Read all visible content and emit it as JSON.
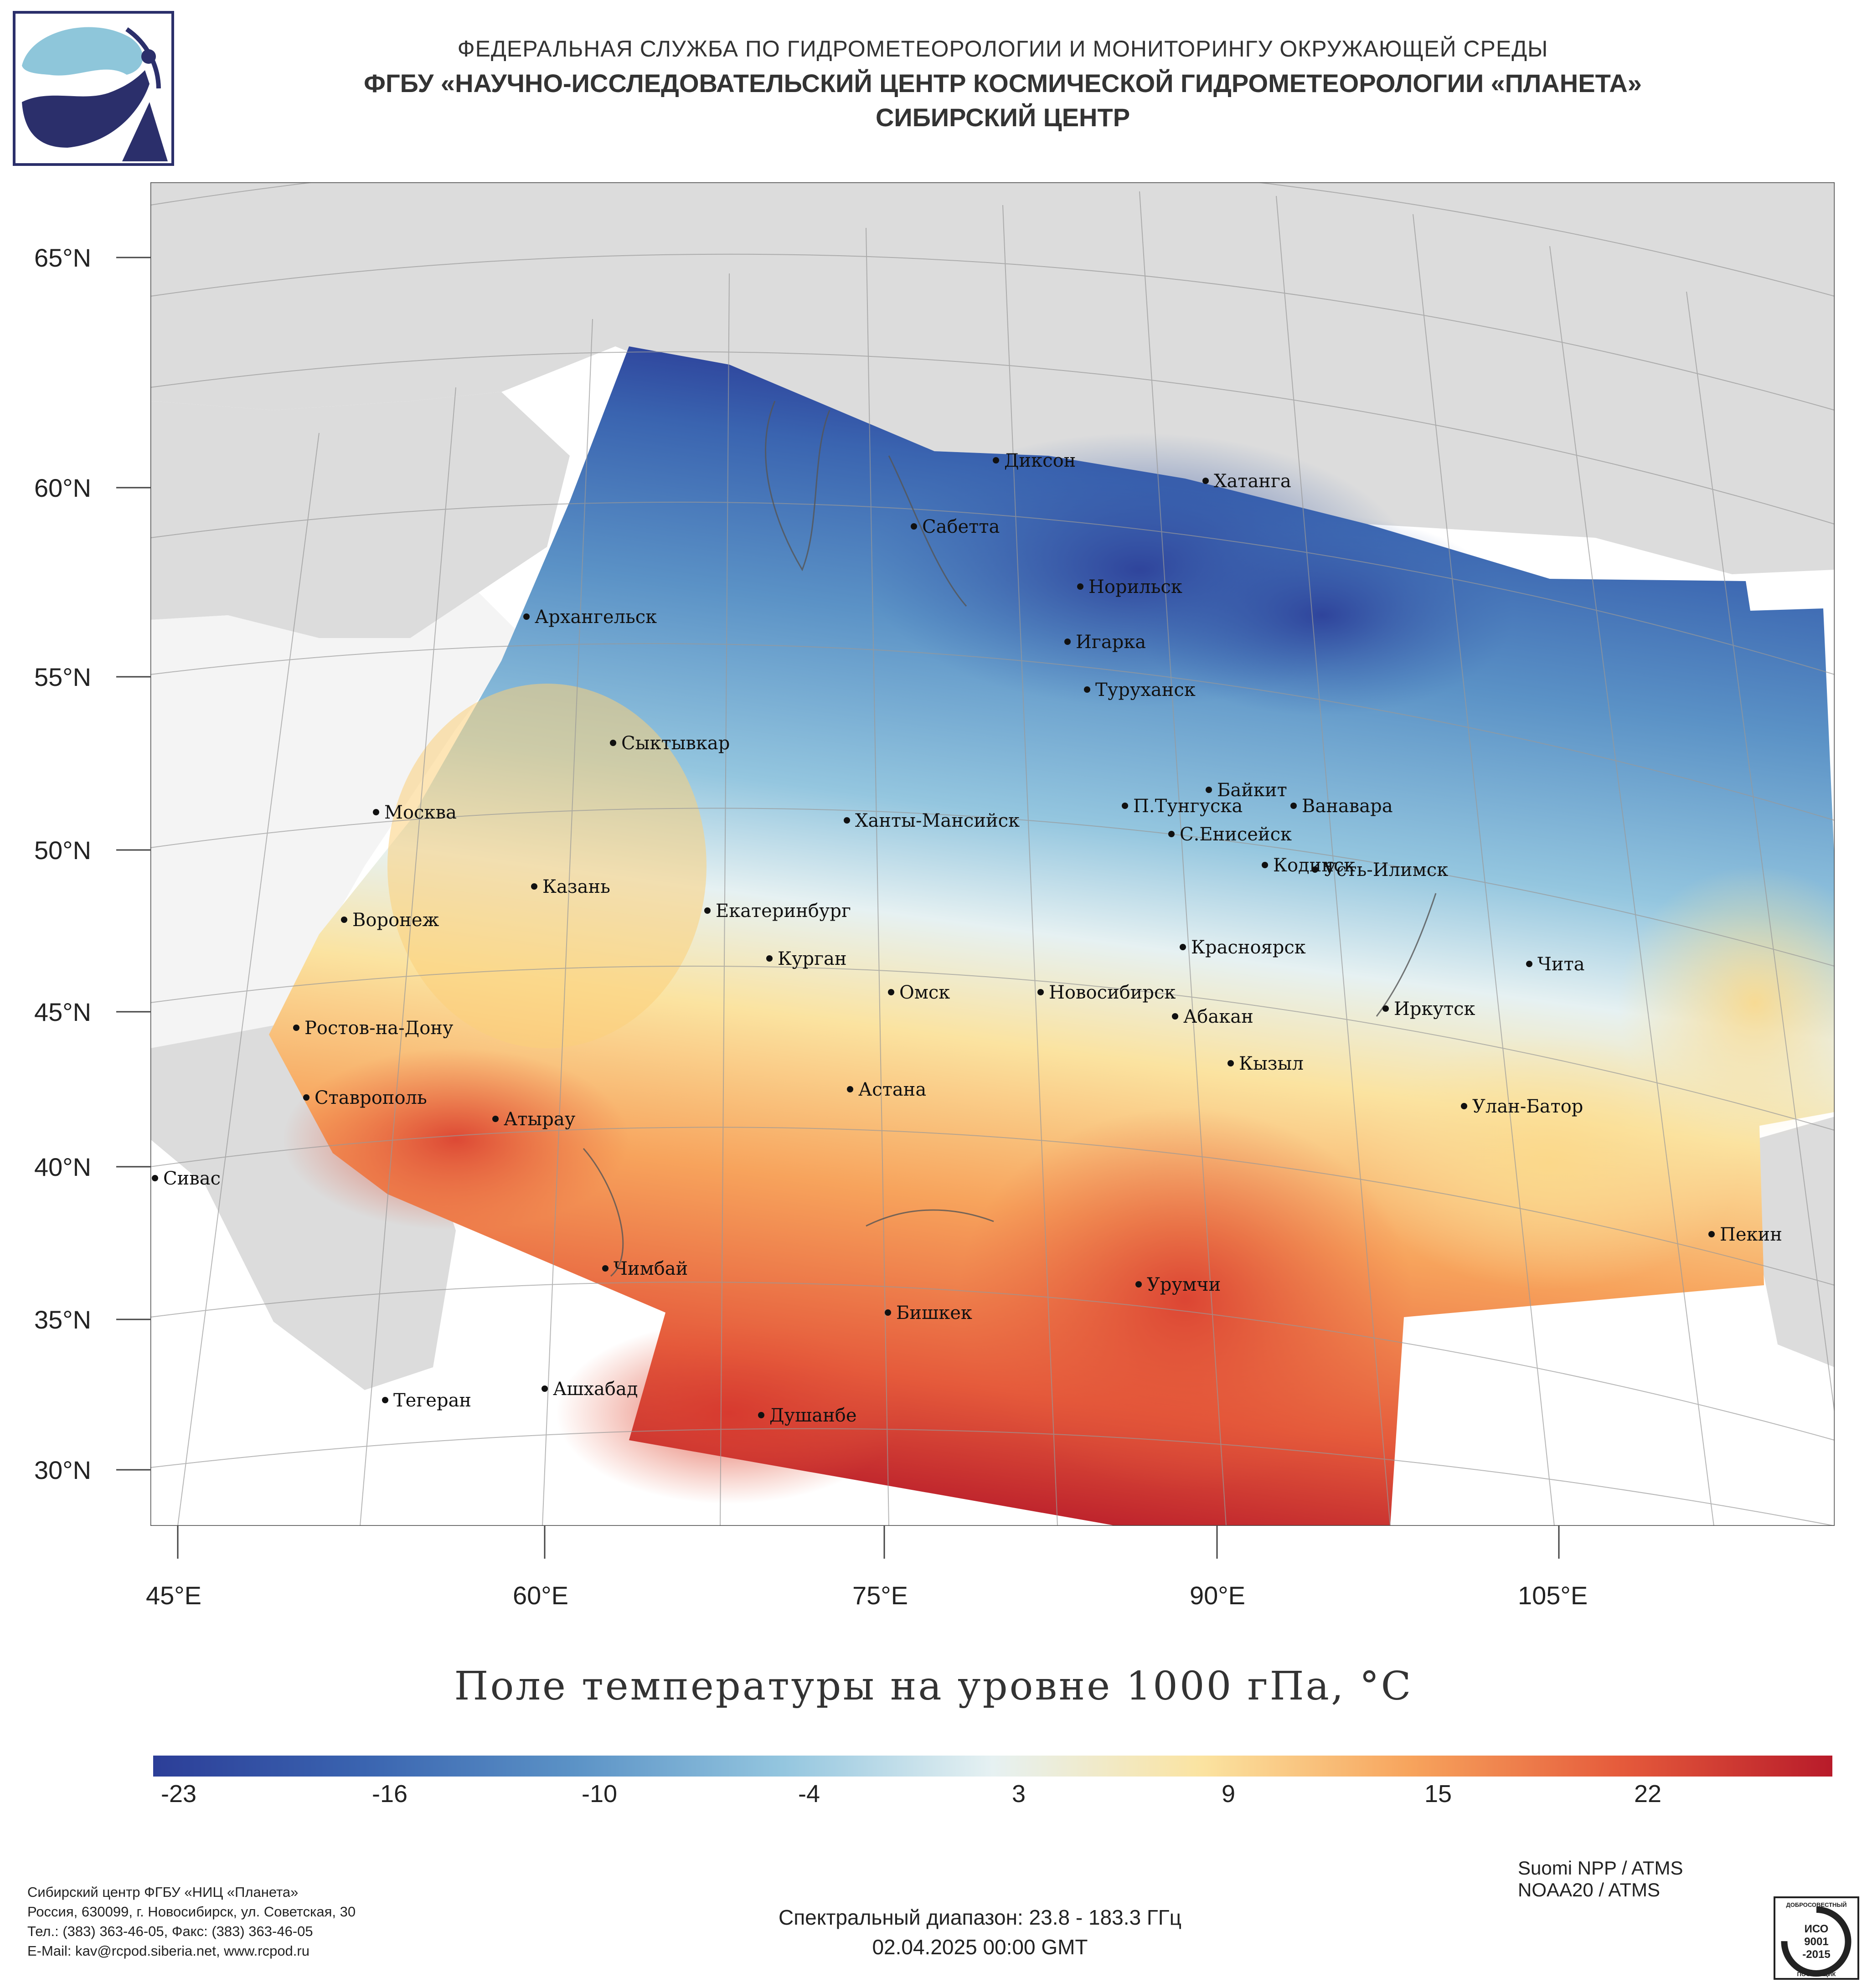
{
  "header": {
    "line1": "ФЕДЕРАЛЬНАЯ СЛУЖБА ПО ГИДРОМЕТЕОРОЛОГИИ И МОНИТОРИНГУ ОКРУЖАЮЩЕЙ СРЕДЫ",
    "line2": "ФГБУ «НАУЧНО-ИССЛЕДОВАТЕЛЬСКИЙ ЦЕНТР КОСМИЧЕСКОЙ ГИДРОМЕТЕОРОЛОГИИ «ПЛАНЕТА»",
    "line3": "СИБИРСКИЙ ЦЕНТР"
  },
  "map": {
    "lat_labels": [
      "65°N",
      "60°N",
      "55°N",
      "50°N",
      "45°N",
      "40°N",
      "35°N",
      "30°N"
    ],
    "lon_labels": [
      "45°E",
      "60°E",
      "75°E",
      "90°E",
      "105°E"
    ],
    "cities": [
      {
        "name": "Диксон"
      },
      {
        "name": "Хатанга"
      },
      {
        "name": "Сабетта"
      },
      {
        "name": "Норильск"
      },
      {
        "name": "Архангельск"
      },
      {
        "name": "Игарка"
      },
      {
        "name": "Туруханск"
      },
      {
        "name": "Сыктывкар"
      },
      {
        "name": "Байкит"
      },
      {
        "name": "П.Тунгуска"
      },
      {
        "name": "Ванавара"
      },
      {
        "name": "Москва"
      },
      {
        "name": "Ханты-Мансийск"
      },
      {
        "name": "С.Енисейск"
      },
      {
        "name": "Кодинск"
      },
      {
        "name": "Усть-Илимск"
      },
      {
        "name": "Казань"
      },
      {
        "name": "Екатеринбург"
      },
      {
        "name": "Воронеж"
      },
      {
        "name": "Красноярск"
      },
      {
        "name": "Курган"
      },
      {
        "name": "Чита"
      },
      {
        "name": "Омск"
      },
      {
        "name": "Новосибирск"
      },
      {
        "name": "Иркутск"
      },
      {
        "name": "Ростов-на-Дону"
      },
      {
        "name": "Абакан"
      },
      {
        "name": "Кызыл"
      },
      {
        "name": "Астана"
      },
      {
        "name": "Ставрополь"
      },
      {
        "name": "Улан-Батор"
      },
      {
        "name": "Атырау"
      },
      {
        "name": "Сивас"
      },
      {
        "name": "Пекин"
      },
      {
        "name": "Чимбай"
      },
      {
        "name": "Урумчи"
      },
      {
        "name": "Бишкек"
      },
      {
        "name": "Ашхабад"
      },
      {
        "name": "Тегеран"
      },
      {
        "name": "Душанбе"
      }
    ]
  },
  "title": "Поле температуры на уровне 1000 гПа, °C",
  "colorbar": {
    "ticks": [
      "-23",
      "-16",
      "-10",
      "-4",
      "3",
      "9",
      "15",
      "22"
    ],
    "colors": [
      "#2c3e98",
      "#3a64b0",
      "#5b92c6",
      "#94c6df",
      "#e6f1f2",
      "#fbe3a0",
      "#f7a35c",
      "#e55a3b",
      "#b81b2a"
    ]
  },
  "footer": {
    "org_lines": [
      "Сибирский центр ФГБУ «НИЦ «Планета»",
      "Россия, 630099, г. Новосибирск, ул. Советская, 30",
      "Тел.: (383) 363-46-05, Факс: (383) 363-46-05",
      "E-Mail: kav@rcpod.siberia.net, www.rcpod.ru"
    ],
    "spectral": "Спектральный диапазон: 23.8 - 183.3 ГГц",
    "datetime": "02.04.2025 00:00 GMT",
    "satellites": [
      "Suomi NPP / ATMS",
      "NOAA20 / ATMS"
    ],
    "iso_badge": {
      "top": "ДОБРОСОВЕСТНЫЙ",
      "middle": [
        "ИСО",
        "9001",
        "-2015"
      ],
      "bottom": "ПОСТАВЩИК"
    }
  }
}
